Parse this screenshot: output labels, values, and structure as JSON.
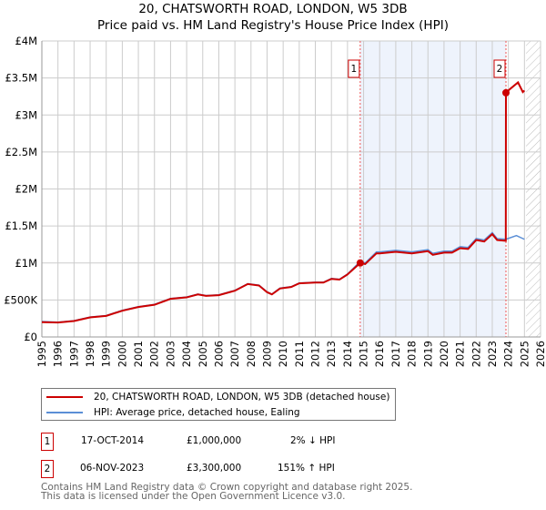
{
  "title": "20, CHATSWORTH ROAD, LONDON, W5 3DB",
  "subtitle": "Price paid vs. HM Land Registry's House Price Index (HPI)",
  "chart_data": {
    "type": "line",
    "xlim": [
      1995,
      2026
    ],
    "ylim": [
      0,
      4000000
    ],
    "yticks": [
      {
        "v": 0,
        "label": "£0"
      },
      {
        "v": 500000,
        "label": "£500K"
      },
      {
        "v": 1000000,
        "label": "£1M"
      },
      {
        "v": 1500000,
        "label": "£1.5M"
      },
      {
        "v": 2000000,
        "label": "£2M"
      },
      {
        "v": 2500000,
        "label": "£2.5M"
      },
      {
        "v": 3000000,
        "label": "£3M"
      },
      {
        "v": 3500000,
        "label": "£3.5M"
      },
      {
        "v": 4000000,
        "label": "£4M"
      }
    ],
    "xticks": [
      1995,
      1996,
      1997,
      1998,
      1999,
      2000,
      2001,
      2002,
      2003,
      2004,
      2005,
      2006,
      2007,
      2008,
      2009,
      2010,
      2011,
      2012,
      2013,
      2014,
      2015,
      2016,
      2017,
      2018,
      2019,
      2020,
      2021,
      2022,
      2023,
      2024,
      2025,
      2026
    ],
    "shaded_range": [
      2014.79,
      2023.85
    ],
    "future_hatch_from": 2025.1,
    "series": [
      {
        "name": "HPI: Average price, detached house, Ealing",
        "color": "#5b8fd6",
        "points": [
          [
            1995,
            210000
          ],
          [
            1996,
            200000
          ],
          [
            1997,
            220000
          ],
          [
            1998,
            270000
          ],
          [
            1999,
            290000
          ],
          [
            2000,
            360000
          ],
          [
            2001,
            410000
          ],
          [
            2002,
            440000
          ],
          [
            2003,
            520000
          ],
          [
            2004,
            540000
          ],
          [
            2004.7,
            580000
          ],
          [
            2005.2,
            560000
          ],
          [
            2006,
            570000
          ],
          [
            2007,
            630000
          ],
          [
            2007.8,
            720000
          ],
          [
            2008.5,
            700000
          ],
          [
            2009,
            610000
          ],
          [
            2009.3,
            580000
          ],
          [
            2009.8,
            660000
          ],
          [
            2010.5,
            680000
          ],
          [
            2011,
            730000
          ],
          [
            2012,
            740000
          ],
          [
            2012.5,
            740000
          ],
          [
            2013,
            790000
          ],
          [
            2013.5,
            780000
          ],
          [
            2014,
            850000
          ],
          [
            2014.79,
            1020000
          ],
          [
            2015.1,
            1000000
          ],
          [
            2015.8,
            1150000
          ],
          [
            2016,
            1150000
          ],
          [
            2017,
            1170000
          ],
          [
            2018,
            1150000
          ],
          [
            2019,
            1180000
          ],
          [
            2019.3,
            1130000
          ],
          [
            2020,
            1160000
          ],
          [
            2020.5,
            1160000
          ],
          [
            2021,
            1220000
          ],
          [
            2021.5,
            1210000
          ],
          [
            2022,
            1330000
          ],
          [
            2022.5,
            1310000
          ],
          [
            2023,
            1410000
          ],
          [
            2023.3,
            1330000
          ],
          [
            2023.85,
            1320000
          ],
          [
            2024.5,
            1370000
          ],
          [
            2025,
            1320000
          ]
        ]
      },
      {
        "name": "20, CHATSWORTH ROAD, LONDON, W5 3DB (detached house)",
        "color": "#cc0000",
        "points": [
          [
            1995,
            200000
          ],
          [
            1996,
            195000
          ],
          [
            1997,
            215000
          ],
          [
            1998,
            265000
          ],
          [
            1999,
            285000
          ],
          [
            2000,
            355000
          ],
          [
            2001,
            405000
          ],
          [
            2002,
            435000
          ],
          [
            2003,
            515000
          ],
          [
            2004,
            535000
          ],
          [
            2004.7,
            575000
          ],
          [
            2005.2,
            555000
          ],
          [
            2006,
            565000
          ],
          [
            2007,
            625000
          ],
          [
            2007.8,
            715000
          ],
          [
            2008.5,
            695000
          ],
          [
            2009,
            605000
          ],
          [
            2009.3,
            575000
          ],
          [
            2009.8,
            655000
          ],
          [
            2010.5,
            675000
          ],
          [
            2011,
            725000
          ],
          [
            2012,
            735000
          ],
          [
            2012.5,
            735000
          ],
          [
            2013,
            785000
          ],
          [
            2013.5,
            775000
          ],
          [
            2014,
            845000
          ],
          [
            2014.79,
            1000000
          ],
          [
            2015.1,
            985000
          ],
          [
            2015.8,
            1130000
          ],
          [
            2016,
            1130000
          ],
          [
            2017,
            1150000
          ],
          [
            2018,
            1130000
          ],
          [
            2019,
            1160000
          ],
          [
            2019.3,
            1110000
          ],
          [
            2020,
            1140000
          ],
          [
            2020.5,
            1140000
          ],
          [
            2021,
            1200000
          ],
          [
            2021.5,
            1190000
          ],
          [
            2022,
            1310000
          ],
          [
            2022.5,
            1290000
          ],
          [
            2023,
            1390000
          ],
          [
            2023.3,
            1310000
          ],
          [
            2023.84,
            1300000
          ],
          [
            2023.85,
            3300000
          ],
          [
            2024.1,
            3350000
          ],
          [
            2024.6,
            3440000
          ],
          [
            2024.9,
            3310000
          ],
          [
            2025,
            3330000
          ]
        ]
      }
    ],
    "sales": [
      {
        "id": "1",
        "x": 2014.79,
        "y": 1000000
      },
      {
        "id": "2",
        "x": 2023.85,
        "y": 3300000
      }
    ]
  },
  "legend": [
    {
      "label": "20, CHATSWORTH ROAD, LONDON, W5 3DB (detached house)",
      "color": "#cc0000"
    },
    {
      "label": "HPI: Average price, detached house, Ealing",
      "color": "#5b8fd6"
    }
  ],
  "transactions": [
    {
      "id": "1",
      "date": "17-OCT-2014",
      "price": "£1,000,000",
      "hpi": "2% ↓ HPI"
    },
    {
      "id": "2",
      "date": "06-NOV-2023",
      "price": "£3,300,000",
      "hpi": "151% ↑ HPI"
    }
  ],
  "footer": [
    "Contains HM Land Registry data © Crown copyright and database right 2025.",
    "This data is licensed under the Open Government Licence v3.0."
  ]
}
